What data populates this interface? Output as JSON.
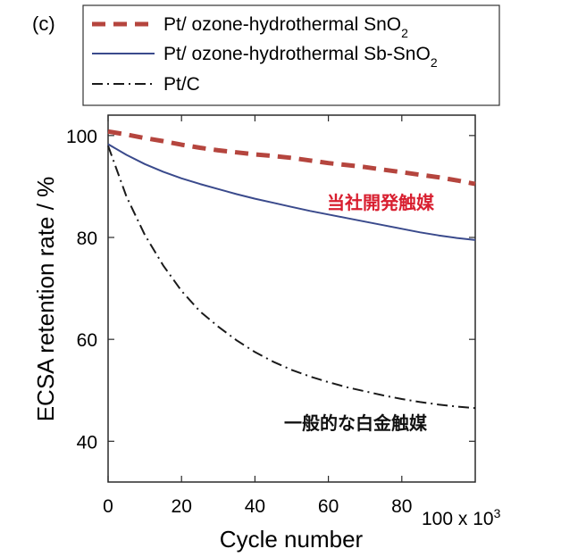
{
  "panel_label": "(c)",
  "legend": [
    {
      "name": "Pt/ ozone-hydrothermal SnO",
      "sub": "2",
      "tail": "",
      "style": "dashed-thick",
      "color": "#b5453e"
    },
    {
      "name": "Pt/ ozone-hydrothermal Sb-SnO",
      "sub": "2",
      "tail": "",
      "style": "solid",
      "color": "#3a4a8c"
    },
    {
      "name": "Pt/C",
      "sub": "",
      "tail": "",
      "style": "dash-dot",
      "color": "#1a1a1a"
    }
  ],
  "annotations": {
    "company_catalyst": "当社開発触媒",
    "company_catalyst_color": "#d81e2f",
    "general_pt_catalyst": "一般的な白金触媒",
    "general_pt_catalyst_color": "#111111"
  },
  "chart_data": {
    "type": "line",
    "title": "",
    "xlabel": "Cycle number",
    "x_multiplier_label": "100 x 10",
    "x_multiplier_sup": "3",
    "ylabel": "ECSA retention rate / %",
    "xlim": [
      0,
      100
    ],
    "ylim": [
      32,
      104
    ],
    "xticks": [
      0,
      20,
      40,
      60,
      80
    ],
    "yticks": [
      40,
      60,
      80,
      100
    ],
    "grid": false,
    "legend_position": "top, outside plot",
    "series": [
      {
        "name": "Pt/ ozone-hydrothermal SnO2",
        "x": [
          0,
          5,
          10,
          15,
          20,
          25,
          30,
          35,
          40,
          45,
          50,
          55,
          60,
          65,
          70,
          75,
          80,
          85,
          90,
          95,
          100
        ],
        "values": [
          100.8,
          100.2,
          99.5,
          98.9,
          98.2,
          97.6,
          97.1,
          96.7,
          96.3,
          96.0,
          95.6,
          95.1,
          94.6,
          94.2,
          93.8,
          93.3,
          92.8,
          92.3,
          91.8,
          91.2,
          90.5
        ]
      },
      {
        "name": "Pt/ ozone-hydrothermal Sb-SnO2",
        "x": [
          0,
          5,
          10,
          15,
          20,
          25,
          30,
          35,
          40,
          45,
          50,
          55,
          60,
          65,
          70,
          75,
          80,
          85,
          90,
          95,
          100
        ],
        "values": [
          98.3,
          96.2,
          94.4,
          92.9,
          91.6,
          90.5,
          89.5,
          88.5,
          87.6,
          86.8,
          86.0,
          85.2,
          84.5,
          83.8,
          83.1,
          82.4,
          81.7,
          81.0,
          80.4,
          79.9,
          79.5
        ]
      },
      {
        "name": "Pt/C",
        "x": [
          0,
          5,
          10,
          15,
          20,
          25,
          30,
          35,
          40,
          45,
          50,
          55,
          60,
          65,
          70,
          75,
          80,
          85,
          90,
          95,
          100
        ],
        "values": [
          98.0,
          88.0,
          80.5,
          74.5,
          69.5,
          65.5,
          62.5,
          59.8,
          57.5,
          55.6,
          54.0,
          52.7,
          51.6,
          50.6,
          49.8,
          49.0,
          48.3,
          47.7,
          47.2,
          46.8,
          46.5
        ]
      }
    ]
  }
}
